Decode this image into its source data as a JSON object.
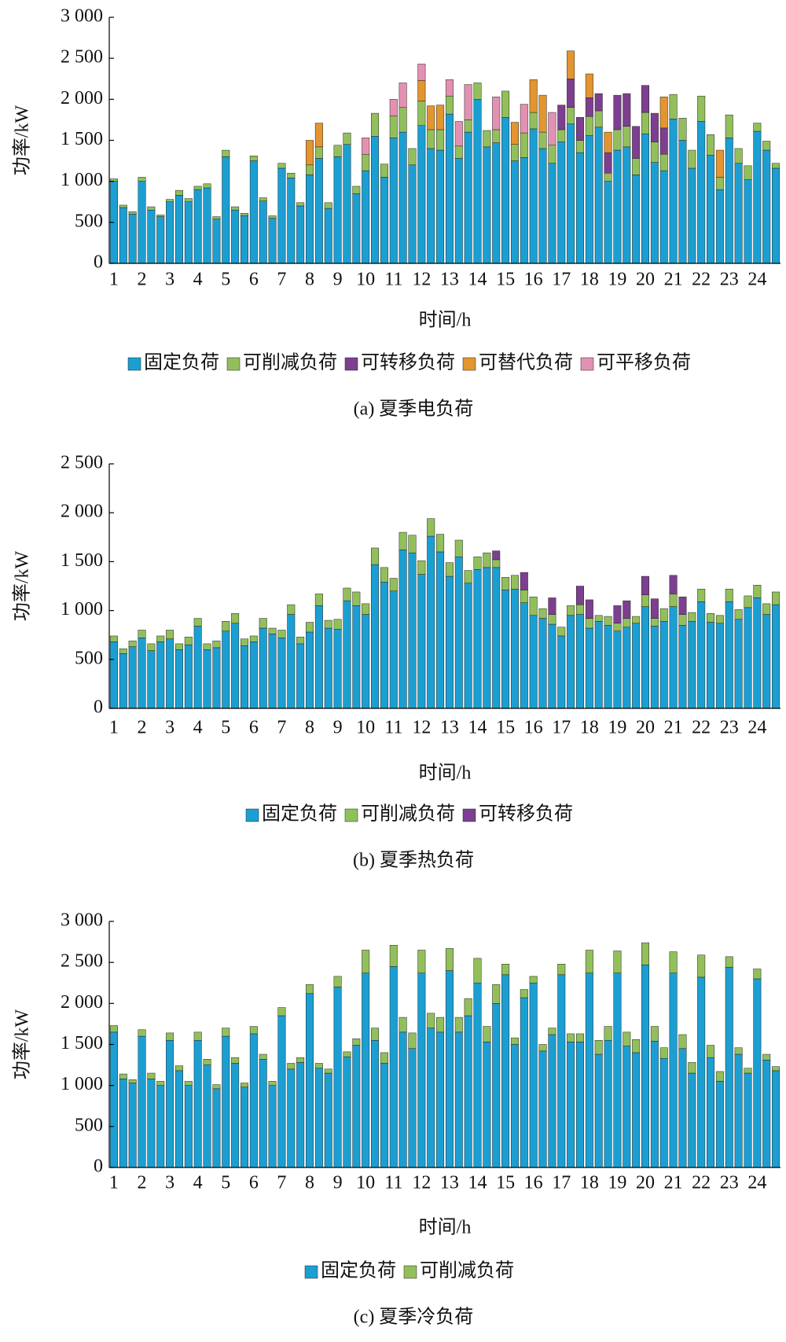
{
  "chart_data": [
    {
      "type": "bar",
      "stacked": true,
      "title": "(a) 夏季电负荷",
      "y_label": "功率/kW",
      "x_label": "时间/h",
      "categories": [
        "1",
        null,
        null,
        "2",
        null,
        null,
        "3",
        null,
        null,
        "4",
        null,
        null,
        "5",
        null,
        null,
        "6",
        null,
        null,
        "7",
        null,
        null,
        "8",
        null,
        null,
        "9",
        null,
        null,
        "10",
        null,
        null,
        "11",
        null,
        null,
        "12",
        null,
        null,
        "13",
        null,
        null,
        "14",
        null,
        null,
        "15",
        null,
        null,
        "16",
        null,
        null,
        "17",
        null,
        null,
        "18",
        null,
        null,
        "19",
        null,
        null,
        "20",
        null,
        null,
        "21",
        null,
        null,
        "22",
        null,
        null,
        "23",
        null,
        null,
        "24",
        null,
        null
      ],
      "ylim": [
        0,
        3000
      ],
      "yticks": [
        0,
        500,
        {
          "value": 1000,
          "label": "1 000"
        },
        {
          "value": 1500,
          "label": "1 500"
        },
        {
          "value": 2000,
          "label": "2 000"
        },
        {
          "value": 2500,
          "label": "2 500"
        },
        {
          "value": 3000,
          "label": "3 000"
        }
      ],
      "series": [
        {
          "name": "固定负荷",
          "color": "#1b9fd2",
          "values": [
            1000,
            680,
            600,
            1000,
            650,
            570,
            750,
            830,
            750,
            900,
            920,
            540,
            1300,
            650,
            580,
            1250,
            760,
            550,
            1160,
            1040,
            700,
            1080,
            1280,
            670,
            1300,
            1450,
            850,
            1130,
            1550,
            1050,
            1530,
            1600,
            1200,
            1680,
            1400,
            1380,
            1820,
            1280,
            1600,
            2000,
            1420,
            1470,
            1780,
            1250,
            1290,
            1640,
            1400,
            1220,
            1480,
            1700,
            1350,
            1560,
            1660,
            1000,
            1380,
            1420,
            1080,
            1580,
            1230,
            1130,
            1760,
            1500,
            1160,
            1730,
            1320,
            900,
            1530,
            1220,
            1020,
            1610,
            1380,
            1160
          ]
        },
        {
          "name": "可削减负荷",
          "color": "#92bf5c",
          "values": [
            30,
            30,
            30,
            50,
            40,
            20,
            30,
            60,
            40,
            40,
            50,
            30,
            80,
            40,
            30,
            60,
            40,
            30,
            60,
            60,
            40,
            120,
            140,
            70,
            140,
            140,
            90,
            200,
            280,
            160,
            270,
            300,
            200,
            300,
            230,
            250,
            220,
            150,
            150,
            200,
            200,
            160,
            320,
            200,
            300,
            200,
            200,
            220,
            150,
            200,
            150,
            230,
            200,
            100,
            250,
            250,
            200,
            260,
            250,
            200,
            300,
            270,
            220,
            310,
            250,
            150,
            280,
            180,
            170,
            100,
            110,
            60
          ]
        },
        {
          "name": "可转移负荷",
          "color": "#7d3f8f",
          "values": [
            0,
            0,
            0,
            0,
            0,
            0,
            0,
            0,
            0,
            0,
            0,
            0,
            0,
            0,
            0,
            0,
            0,
            0,
            0,
            0,
            0,
            0,
            0,
            0,
            0,
            0,
            0,
            0,
            0,
            0,
            0,
            0,
            0,
            0,
            0,
            0,
            0,
            0,
            0,
            0,
            0,
            0,
            0,
            0,
            0,
            0,
            0,
            0,
            300,
            350,
            280,
            230,
            210,
            250,
            420,
            400,
            390,
            330,
            350,
            320,
            0,
            0,
            0,
            0,
            0,
            0,
            0,
            0,
            0,
            0,
            0,
            0
          ]
        },
        {
          "name": "可替代负荷",
          "color": "#e3952f",
          "values": [
            0,
            0,
            0,
            0,
            0,
            0,
            0,
            0,
            0,
            0,
            0,
            0,
            0,
            0,
            0,
            0,
            0,
            0,
            0,
            0,
            0,
            300,
            290,
            0,
            0,
            0,
            0,
            0,
            0,
            0,
            0,
            0,
            0,
            250,
            290,
            300,
            0,
            0,
            0,
            0,
            0,
            0,
            0,
            270,
            0,
            400,
            450,
            0,
            0,
            340,
            0,
            290,
            0,
            250,
            0,
            0,
            0,
            0,
            0,
            380,
            0,
            0,
            0,
            0,
            0,
            330,
            0,
            0,
            0,
            0,
            0,
            0
          ]
        },
        {
          "name": "可平移负荷",
          "color": "#e391b3",
          "values": [
            0,
            0,
            0,
            0,
            0,
            0,
            0,
            0,
            0,
            0,
            0,
            0,
            0,
            0,
            0,
            0,
            0,
            0,
            0,
            0,
            0,
            0,
            0,
            0,
            0,
            0,
            0,
            200,
            0,
            0,
            200,
            300,
            0,
            200,
            0,
            0,
            200,
            300,
            430,
            0,
            0,
            400,
            0,
            0,
            350,
            0,
            0,
            400,
            0,
            0,
            0,
            0,
            0,
            0,
            0,
            0,
            0,
            0,
            0,
            0,
            0,
            0,
            0,
            0,
            0,
            0,
            0,
            0,
            0,
            0,
            0,
            0
          ]
        }
      ]
    },
    {
      "type": "bar",
      "stacked": true,
      "title": "(b) 夏季热负荷",
      "y_label": "功率/kW",
      "x_label": "时间/h",
      "categories": [
        "1",
        null,
        null,
        "2",
        null,
        null,
        "3",
        null,
        null,
        "4",
        null,
        null,
        "5",
        null,
        null,
        "6",
        null,
        null,
        "7",
        null,
        null,
        "8",
        null,
        null,
        "9",
        null,
        null,
        "10",
        null,
        null,
        "11",
        null,
        null,
        "12",
        null,
        null,
        "13",
        null,
        null,
        "14",
        null,
        null,
        "15",
        null,
        null,
        "16",
        null,
        null,
        "17",
        null,
        null,
        "18",
        null,
        null,
        "19",
        null,
        null,
        "20",
        null,
        null,
        "21",
        null,
        null,
        "22",
        null,
        null,
        "23",
        null,
        null,
        "24",
        null,
        null
      ],
      "ylim": [
        0,
        2500
      ],
      "yticks": [
        0,
        500,
        {
          "value": 1000,
          "label": "1 000"
        },
        {
          "value": 1500,
          "label": "1 500"
        },
        {
          "value": 2000,
          "label": "2 000"
        },
        {
          "value": 2500,
          "label": "2 500"
        }
      ],
      "series": [
        {
          "name": "固定负荷",
          "color": "#1b9fd2",
          "values": [
            680,
            560,
            630,
            720,
            590,
            680,
            710,
            600,
            650,
            840,
            600,
            620,
            790,
            870,
            640,
            680,
            820,
            760,
            720,
            960,
            660,
            780,
            1050,
            820,
            810,
            1100,
            1050,
            960,
            1470,
            1290,
            1200,
            1620,
            1590,
            1370,
            1760,
            1600,
            1350,
            1550,
            1280,
            1420,
            1440,
            1440,
            1210,
            1220,
            1080,
            950,
            920,
            860,
            740,
            950,
            960,
            820,
            890,
            850,
            790,
            830,
            870,
            1040,
            840,
            890,
            1040,
            850,
            890,
            1090,
            880,
            870,
            1090,
            910,
            1030,
            1130,
            960,
            1060
          ]
        },
        {
          "name": "可削减负荷",
          "color": "#92bf5c",
          "values": [
            60,
            50,
            60,
            80,
            70,
            60,
            90,
            60,
            80,
            80,
            60,
            70,
            100,
            100,
            70,
            60,
            100,
            60,
            80,
            100,
            70,
            100,
            120,
            80,
            100,
            130,
            140,
            110,
            170,
            150,
            130,
            180,
            180,
            140,
            180,
            180,
            140,
            170,
            130,
            130,
            150,
            80,
            130,
            140,
            130,
            190,
            100,
            100,
            90,
            100,
            100,
            100,
            60,
            90,
            80,
            90,
            70,
            120,
            80,
            130,
            130,
            110,
            90,
            130,
            90,
            80,
            130,
            100,
            120,
            130,
            110,
            130
          ]
        },
        {
          "name": "可转移负荷",
          "color": "#7d3f8f",
          "values": [
            0,
            0,
            0,
            0,
            0,
            0,
            0,
            0,
            0,
            0,
            0,
            0,
            0,
            0,
            0,
            0,
            0,
            0,
            0,
            0,
            0,
            0,
            0,
            0,
            0,
            0,
            0,
            0,
            0,
            0,
            0,
            0,
            0,
            0,
            0,
            0,
            0,
            0,
            0,
            0,
            0,
            90,
            0,
            0,
            180,
            0,
            0,
            170,
            0,
            0,
            190,
            190,
            0,
            0,
            180,
            180,
            0,
            190,
            200,
            0,
            190,
            180,
            0,
            0,
            0,
            0,
            0,
            0,
            0,
            0,
            0,
            0
          ]
        }
      ]
    },
    {
      "type": "bar",
      "stacked": true,
      "title": "(c) 夏季冷负荷",
      "y_label": "功率/kW",
      "x_label": "时间/h",
      "categories": [
        "1",
        null,
        null,
        "2",
        null,
        null,
        "3",
        null,
        null,
        "4",
        null,
        null,
        "5",
        null,
        null,
        "6",
        null,
        null,
        "7",
        null,
        null,
        "8",
        null,
        null,
        "9",
        null,
        null,
        "10",
        null,
        null,
        "11",
        null,
        null,
        "12",
        null,
        null,
        "13",
        null,
        null,
        "14",
        null,
        null,
        "15",
        null,
        null,
        "16",
        null,
        null,
        "17",
        null,
        null,
        "18",
        null,
        null,
        "19",
        null,
        null,
        "20",
        null,
        null,
        "21",
        null,
        null,
        "22",
        null,
        null,
        "23",
        null,
        null,
        "24",
        null,
        null
      ],
      "ylim": [
        0,
        3000
      ],
      "yticks": [
        0,
        500,
        {
          "value": 1000,
          "label": "1 000"
        },
        {
          "value": 1500,
          "label": "1 500"
        },
        {
          "value": 2000,
          "label": "2 000"
        },
        {
          "value": 2500,
          "label": "2 500"
        },
        {
          "value": 3000,
          "label": "3 000"
        }
      ],
      "series": [
        {
          "name": "固定负荷",
          "color": "#1b9fd2",
          "values": [
            1650,
            1080,
            1030,
            1600,
            1080,
            1000,
            1550,
            1180,
            1000,
            1550,
            1250,
            960,
            1600,
            1270,
            980,
            1630,
            1320,
            1000,
            1850,
            1200,
            1280,
            2120,
            1210,
            1150,
            2200,
            1350,
            1490,
            2370,
            1550,
            1270,
            2450,
            1650,
            1450,
            2370,
            1700,
            1650,
            2400,
            1650,
            1850,
            2250,
            1530,
            2000,
            2350,
            1500,
            2070,
            2250,
            1420,
            1620,
            2350,
            1530,
            1530,
            2370,
            1380,
            1550,
            2370,
            1480,
            1400,
            2470,
            1540,
            1330,
            2370,
            1450,
            1150,
            2320,
            1340,
            1050,
            2440,
            1380,
            1150,
            2300,
            1310,
            1180
          ]
        },
        {
          "name": "可削减负荷",
          "color": "#92bf5c",
          "values": [
            80,
            60,
            40,
            80,
            70,
            50,
            90,
            60,
            50,
            100,
            70,
            50,
            100,
            70,
            50,
            90,
            60,
            50,
            100,
            70,
            60,
            110,
            60,
            50,
            130,
            60,
            80,
            280,
            150,
            130,
            260,
            180,
            190,
            280,
            180,
            180,
            270,
            180,
            210,
            300,
            190,
            230,
            130,
            80,
            100,
            80,
            80,
            80,
            130,
            100,
            100,
            280,
            170,
            170,
            270,
            170,
            160,
            270,
            180,
            130,
            260,
            170,
            130,
            270,
            150,
            120,
            130,
            80,
            60,
            120,
            70,
            50
          ]
        }
      ]
    }
  ]
}
